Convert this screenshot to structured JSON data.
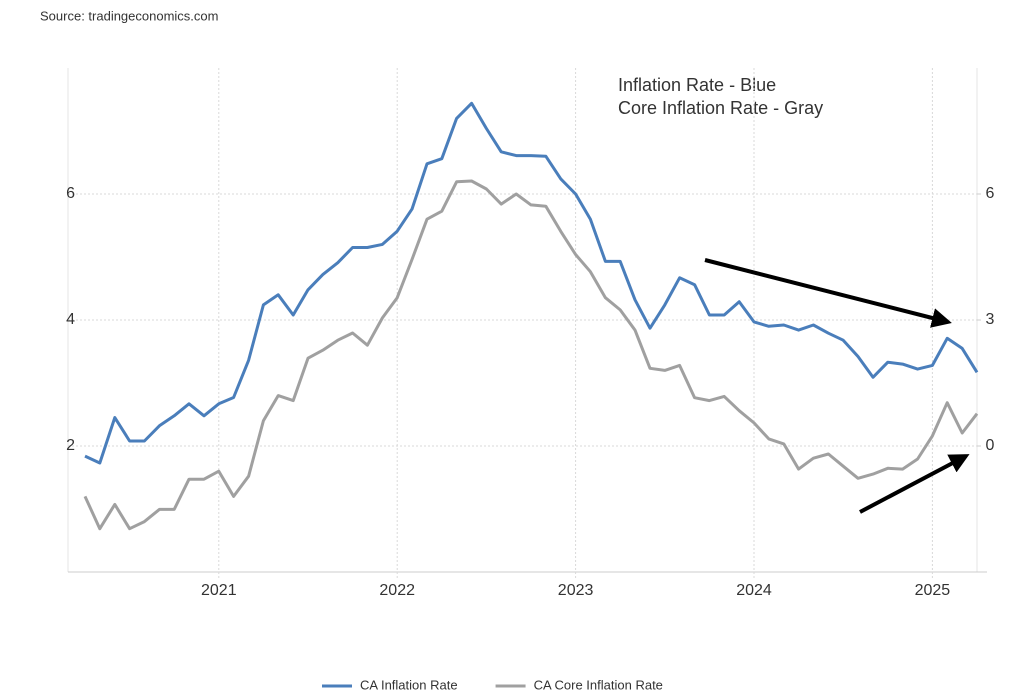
{
  "chart_data": {
    "type": "line",
    "source": "Source: tradingeconomics.com",
    "annotations": [
      "Inflation Rate - Blue",
      "Core Inflation Rate - Gray"
    ],
    "x": [
      2020.25,
      2020.333,
      2020.417,
      2020.5,
      2020.583,
      2020.667,
      2020.75,
      2020.833,
      2020.917,
      2021,
      2021.083,
      2021.167,
      2021.25,
      2021.333,
      2021.417,
      2021.5,
      2021.583,
      2021.667,
      2021.75,
      2021.833,
      2021.917,
      2022,
      2022.083,
      2022.167,
      2022.25,
      2022.333,
      2022.417,
      2022.5,
      2022.583,
      2022.667,
      2022.75,
      2022.833,
      2022.917,
      2023,
      2023.083,
      2023.167,
      2023.25,
      2023.333,
      2023.417,
      2023.5,
      2023.583,
      2023.667,
      2023.75,
      2023.833,
      2023.917,
      2024,
      2024.083,
      2024.167,
      2024.25,
      2024.333,
      2024.417,
      2024.5,
      2024.583,
      2024.667,
      2024.75,
      2024.833,
      2024.917,
      2025,
      2025.083,
      2025.167,
      2025.25
    ],
    "xlim": [
      2020.25,
      2025.25
    ],
    "xticks": [
      2021,
      2022,
      2023,
      2024,
      2025
    ],
    "ylim": [
      0,
      8
    ],
    "yticks": [
      2,
      4,
      6
    ],
    "y2lim": [
      -3,
      9
    ],
    "y2ticks": [
      0,
      3,
      6
    ],
    "grid": true,
    "legend": "bottom",
    "series": [
      {
        "name": "CA Inflation Rate",
        "color": "#4a7ebb",
        "axis": "y",
        "values": [
          1.84,
          1.73,
          2.45,
          2.08,
          2.08,
          2.32,
          2.48,
          2.67,
          2.48,
          2.67,
          2.77,
          3.36,
          4.24,
          4.4,
          4.08,
          4.48,
          4.72,
          4.91,
          5.15,
          5.15,
          5.2,
          5.41,
          5.76,
          6.48,
          6.56,
          7.2,
          7.44,
          7.04,
          6.67,
          6.61,
          6.61,
          6.6,
          6.24,
          6.0,
          5.6,
          4.93,
          4.93,
          4.32,
          3.87,
          4.24,
          4.67,
          4.56,
          4.08,
          4.08,
          4.29,
          3.97,
          3.9,
          3.92,
          3.84,
          3.92,
          3.79,
          3.68,
          3.42,
          3.09,
          3.33,
          3.3,
          3.22,
          3.28,
          3.71,
          3.55,
          3.17
        ]
      },
      {
        "name": "CA Core Inflation Rate",
        "color": "#a0a0a0",
        "axis": "y2",
        "values": [
          -1.2,
          -1.97,
          -1.39,
          -1.97,
          -1.8,
          -1.51,
          -1.51,
          -0.79,
          -0.79,
          -0.6,
          -1.2,
          -0.72,
          0.6,
          1.2,
          1.08,
          2.09,
          2.28,
          2.52,
          2.69,
          2.4,
          3.05,
          3.53,
          4.44,
          5.4,
          5.59,
          6.29,
          6.31,
          6.12,
          5.76,
          6.0,
          5.74,
          5.71,
          5.11,
          4.56,
          4.15,
          3.53,
          3.24,
          2.76,
          1.85,
          1.8,
          1.92,
          1.15,
          1.08,
          1.18,
          0.84,
          0.55,
          0.17,
          0.05,
          -0.55,
          -0.29,
          -0.19,
          -0.48,
          -0.77,
          -0.67,
          -0.53,
          -0.55,
          -0.31,
          0.24,
          1.03,
          0.31,
          0.77
        ]
      }
    ]
  }
}
